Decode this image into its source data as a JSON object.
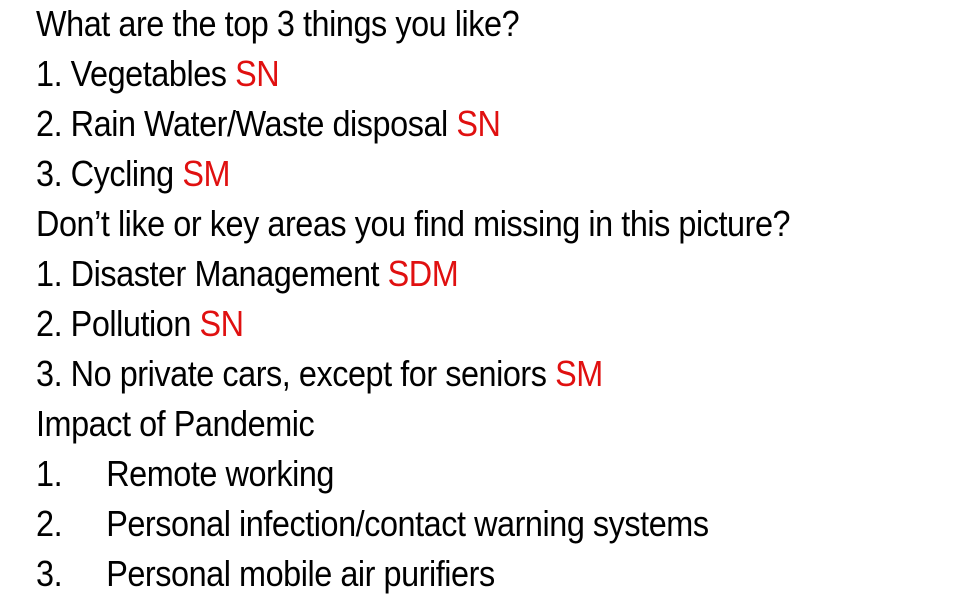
{
  "sections": [
    {
      "heading": "What are the top 3 things you like?",
      "items": [
        {
          "text": "1. Vegetables ",
          "tag": "SN"
        },
        {
          "text": "2. Rain Water/Waste disposal  ",
          "tag": "SN"
        },
        {
          "text": "3. Cycling  ",
          "tag": "SM"
        }
      ]
    },
    {
      "heading": "Don’t like or key areas you find missing in this picture?",
      "items": [
        {
          "text": "1. Disaster Management  ",
          "tag": "SDM"
        },
        {
          "text": "2. Pollution ",
          "tag": "SN"
        },
        {
          "text": "3. No private cars, except for seniors  ",
          "tag": "SM"
        }
      ]
    },
    {
      "heading": "Impact of Pandemic",
      "items": [
        {
          "num": "1.",
          "text": "Remote working"
        },
        {
          "num": "2.",
          "text": "Personal infection/contact warning systems"
        },
        {
          "num": "3.",
          "text": "Personal mobile air purifiers"
        }
      ]
    }
  ],
  "colors": {
    "text": "#000000",
    "tag": "#e01010"
  }
}
